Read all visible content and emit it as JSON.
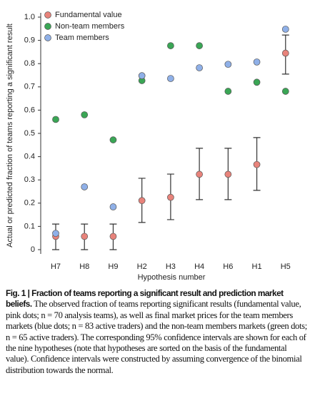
{
  "chart_data": {
    "type": "dot",
    "x_label": "Hypothesis number",
    "y_label": "Actual or predicted fraction of teams reporting a significant result",
    "categories": [
      "H7",
      "H8",
      "H9",
      "H2",
      "H3",
      "H4",
      "H6",
      "H1",
      "H5"
    ],
    "ylim": [
      0,
      1
    ],
    "yticks": [
      0,
      0.1,
      0.2,
      0.3,
      0.4,
      0.5,
      0.6,
      0.7,
      0.8,
      0.9,
      {
        "value": 1,
        "label": "1.0"
      }
    ],
    "legend": "top-left",
    "series": [
      {
        "name": "Fundamental value",
        "color": "#e8837b",
        "values": [
          0.057,
          0.057,
          0.057,
          0.211,
          0.225,
          0.324,
          0.324,
          0.366,
          0.845
        ],
        "ci_low": [
          0,
          0,
          0,
          0.117,
          0.129,
          0.215,
          0.215,
          0.255,
          0.755
        ],
        "ci_high": [
          0.11,
          0.11,
          0.11,
          0.307,
          0.325,
          0.436,
          0.436,
          0.482,
          0.923
        ]
      },
      {
        "name": "Non-team members",
        "color": "#3aa655",
        "values": [
          0.56,
          0.58,
          0.472,
          0.727,
          0.877,
          0.877,
          0.681,
          0.72,
          0.681
        ]
      },
      {
        "name": "Team members",
        "color": "#8fb0e8",
        "values": [
          0.07,
          0.27,
          0.184,
          0.748,
          0.736,
          0.782,
          0.797,
          0.807,
          0.948
        ]
      }
    ]
  },
  "caption": {
    "label": "Fig. 1 | ",
    "bold": "Fraction of teams reporting a significant result and prediction market beliefs.",
    "text": " The observed fraction of teams reporting significant results (fundamental value, pink dots; n = 70 analysis teams), as well as final market prices for the team members markets (blue dots; n = 83 active traders) and the non-team members markets (green dots; n = 65 active traders). The corresponding 95% confidence intervals are shown for each of the nine hypotheses (note that hypotheses are sorted on the basis of the fundamental value). Confidence intervals were constructed by assuming convergence of the binomial distribution towards the normal."
  }
}
